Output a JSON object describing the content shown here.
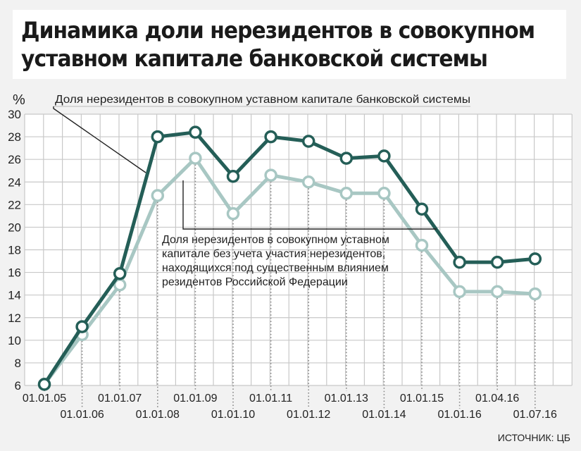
{
  "title_lines": [
    "Динамика доли нерезидентов в совокупном",
    "уставном капитале банковской системы"
  ],
  "source": "ИСТОЧНИК: ЦБ",
  "colors": {
    "series1": "#245e57",
    "series2": "#a8c7c3",
    "grid": "#c8c8c8",
    "background_panel": "#f2f2f2"
  },
  "chart_data": {
    "type": "line",
    "title": "Динамика доли нерезидентов в совокупном уставном капитале банковской системы",
    "ylabel": "%",
    "xlabel": "",
    "ylim": [
      6,
      30
    ],
    "yticks": [
      6,
      8,
      10,
      12,
      14,
      16,
      18,
      20,
      22,
      24,
      26,
      28,
      30
    ],
    "grid": true,
    "x": [
      "01.01.05",
      "01.01.06",
      "01.01.07",
      "01.01.08",
      "01.01.09",
      "01.01.10",
      "01.01.11",
      "01.01.12",
      "01.01.13",
      "01.01.14",
      "01.01.15",
      "01.01.16",
      "01.04.16",
      "01.07.16"
    ],
    "x_label_row": [
      "top",
      "bottom",
      "top",
      "bottom",
      "top",
      "bottom",
      "top",
      "bottom",
      "top",
      "bottom",
      "top",
      "bottom",
      "top",
      "bottom"
    ],
    "series": [
      {
        "name": "Доля нерезидентов в совокупном уставном капитале банковской системы",
        "values": [
          6.1,
          11.2,
          15.9,
          28.0,
          28.4,
          24.5,
          28.0,
          27.6,
          26.1,
          26.3,
          21.6,
          16.9,
          16.9,
          17.2
        ]
      },
      {
        "name": "Доля нерезидентов в совокупном уставном капитале без учета участия нерезидентов, находящихся под существенным влиянием резидентов Российской Федерации",
        "name_lines": [
          "Доля нерезидентов в совокупном уставном",
          "капитале без учета участия нерезидентов,",
          "находящихся под существенным влиянием",
          "резидентов Российской Федерации"
        ],
        "values": [
          6.1,
          10.5,
          14.9,
          22.8,
          26.1,
          21.2,
          24.6,
          24.0,
          23.0,
          23.0,
          18.4,
          14.3,
          14.3,
          14.1
        ]
      }
    ]
  }
}
